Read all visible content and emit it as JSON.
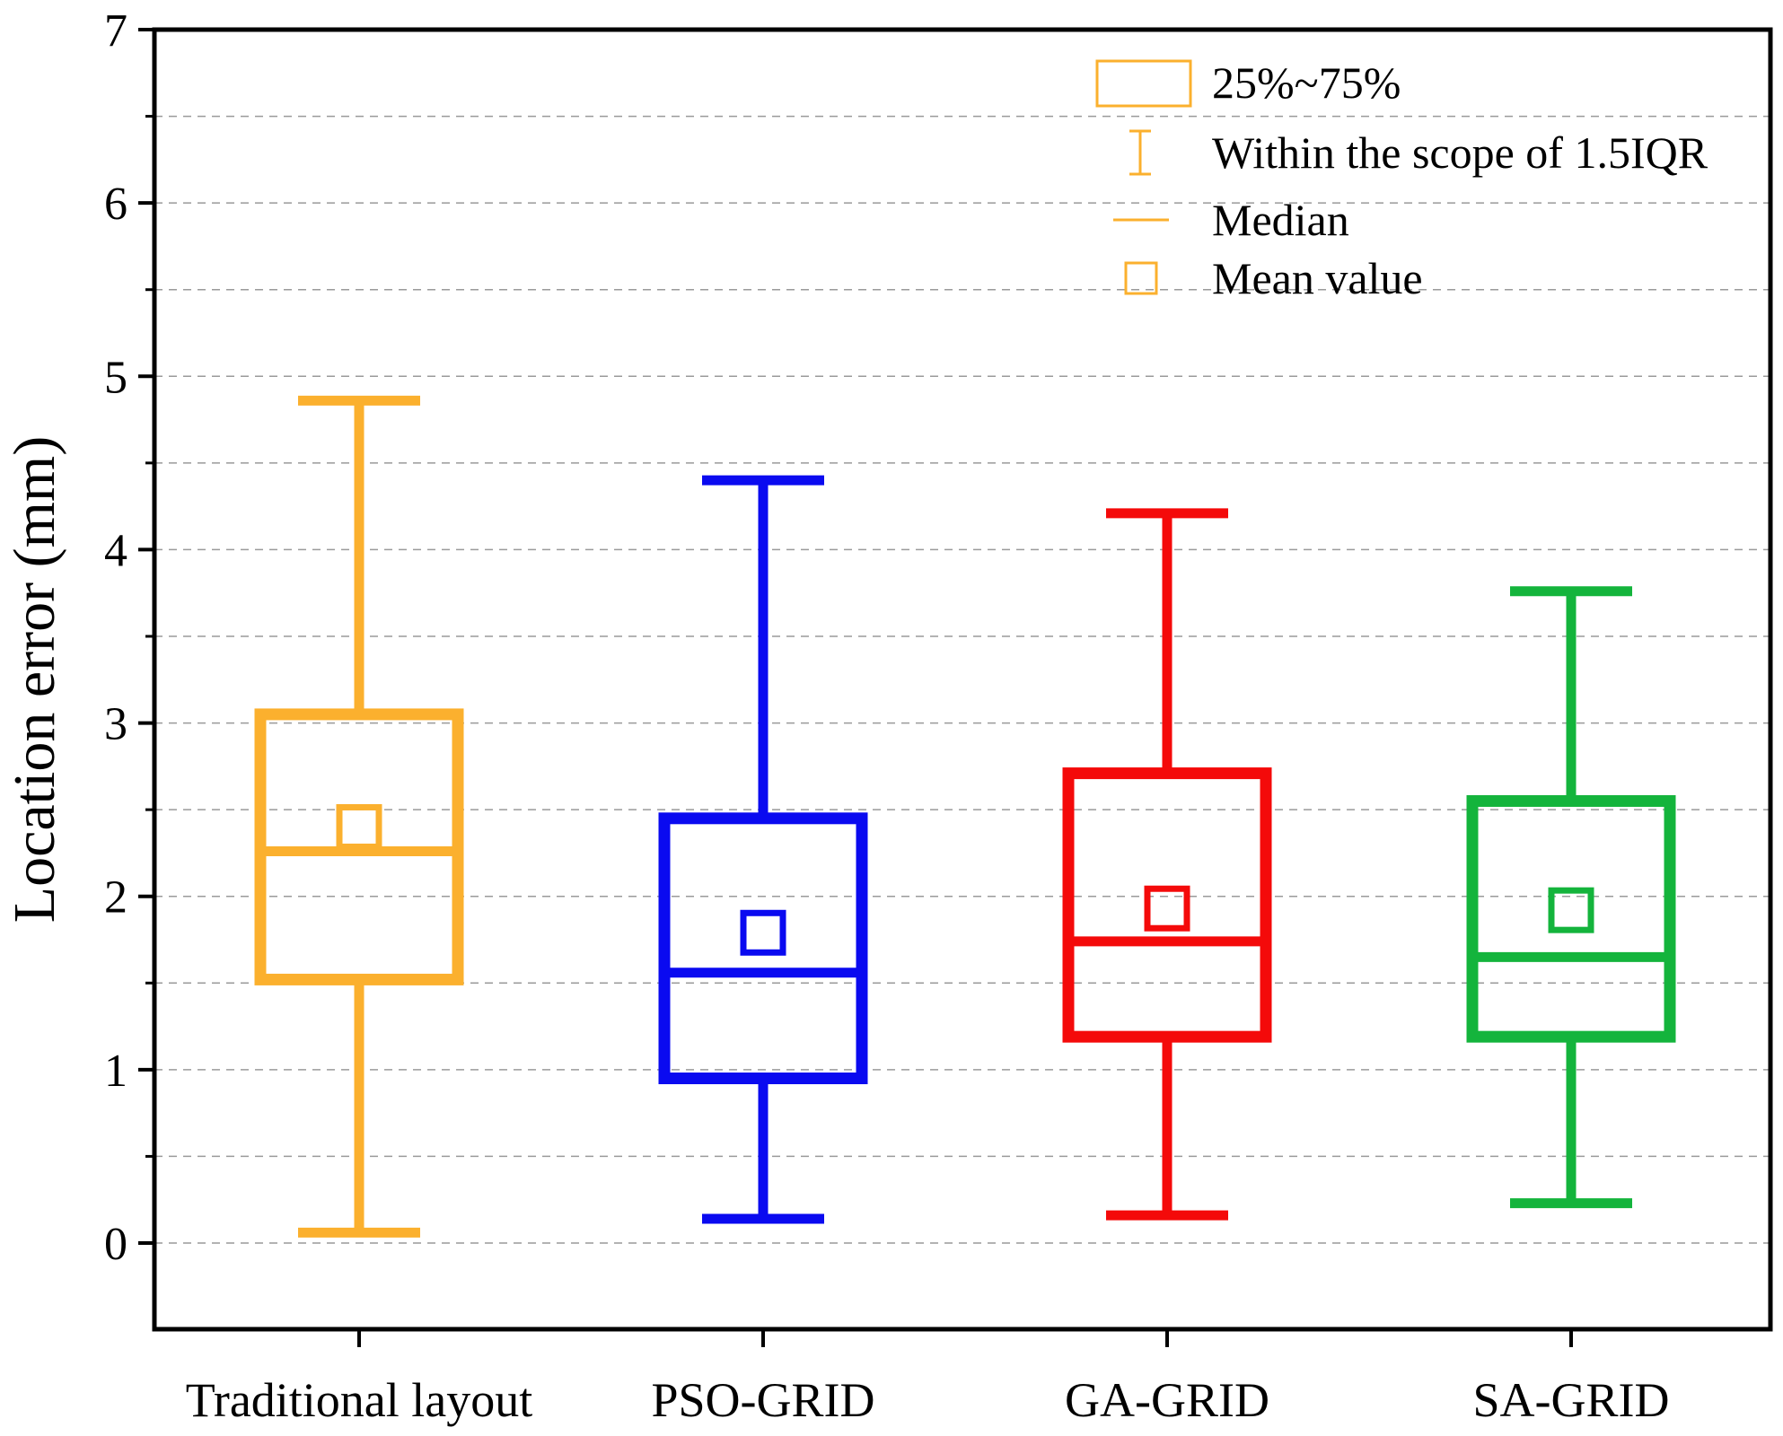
{
  "chart_data": {
    "type": "box",
    "title": "",
    "xlabel": "",
    "ylabel": "Location error (mm)",
    "ylim": [
      -0.5,
      7
    ],
    "yticks": [
      0,
      1,
      2,
      3,
      4,
      5,
      6,
      7
    ],
    "grid": true,
    "categories": [
      "Traditional layout",
      "PSO-GRID",
      "GA-GRID",
      "SA-GRID"
    ],
    "boxes": [
      {
        "name": "Traditional layout",
        "whisker_low": 0.06,
        "q1": 1.52,
        "median": 2.26,
        "q3": 3.05,
        "whisker_high": 4.86,
        "mean": 2.4,
        "color": "#FBB02E"
      },
      {
        "name": "PSO-GRID",
        "whisker_low": 0.14,
        "q1": 0.95,
        "median": 1.56,
        "q3": 2.45,
        "whisker_high": 4.4,
        "mean": 1.79,
        "color": "#0A0AF0"
      },
      {
        "name": "GA-GRID",
        "whisker_low": 0.16,
        "q1": 1.19,
        "median": 1.74,
        "q3": 2.71,
        "whisker_high": 4.21,
        "mean": 1.93,
        "color": "#F40A0A"
      },
      {
        "name": "SA-GRID",
        "whisker_low": 0.23,
        "q1": 1.19,
        "median": 1.65,
        "q3": 2.55,
        "whisker_high": 3.76,
        "mean": 1.92,
        "color": "#14B43C"
      }
    ],
    "legend": {
      "position": "top-right",
      "color": "#FBB02E",
      "items": [
        {
          "symbol": "box",
          "label": "25%~75%"
        },
        {
          "symbol": "whisker",
          "label": "Within the scope of 1.5IQR"
        },
        {
          "symbol": "median",
          "label": "Median"
        },
        {
          "symbol": "mean",
          "label": "Mean value"
        }
      ]
    }
  }
}
